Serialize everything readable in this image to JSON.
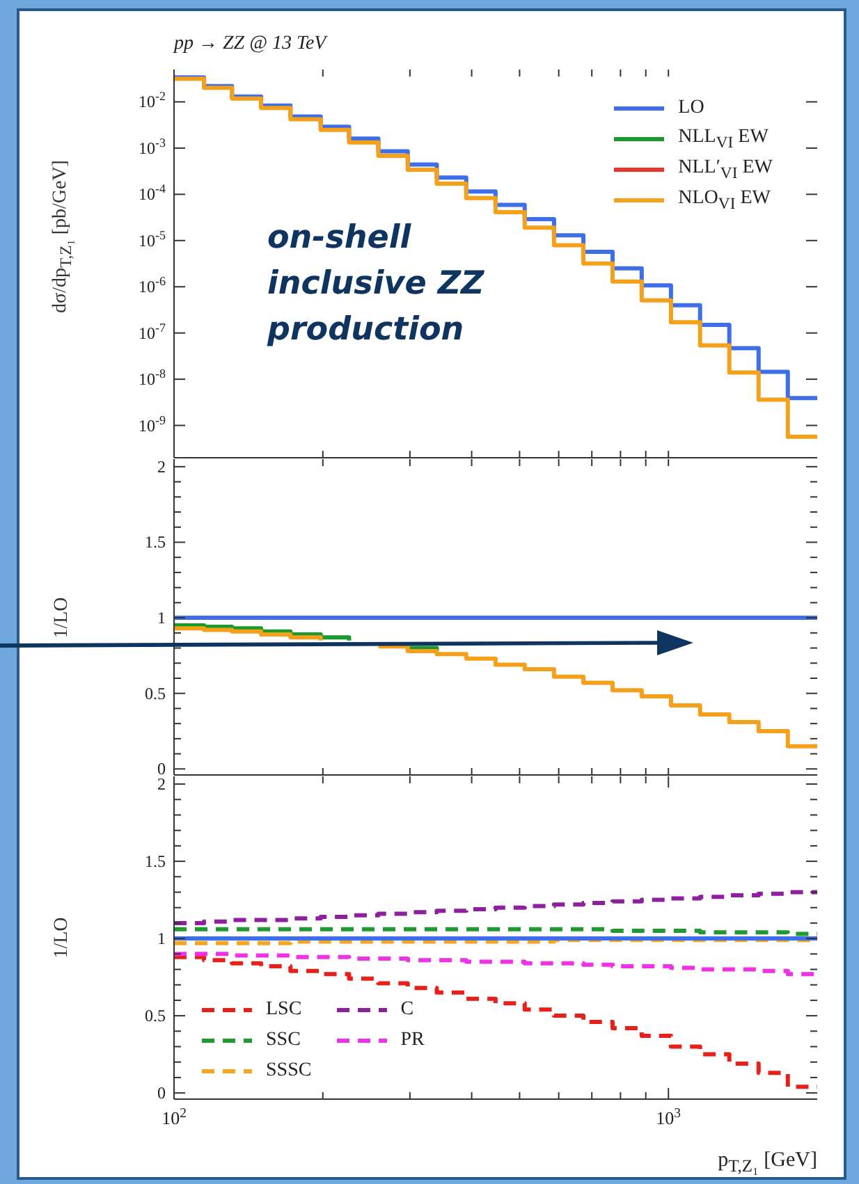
{
  "chart_data": [
    {
      "type": "step",
      "title": "pp → ZZ @ 13 TeV",
      "ylabel": "dσ/dp$_{T,Z₁}$ [pb/GeV]",
      "annotations": [
        "on-shell inclusive ZZ production"
      ],
      "x": [
        100,
        115,
        131,
        150,
        172,
        198,
        226,
        259,
        297,
        340,
        390,
        447,
        512,
        587,
        673,
        771,
        883,
        1012,
        1159,
        1328,
        1522,
        1744,
        2000
      ],
      "xlim": [
        100,
        2000
      ],
      "xticks": [
        {
          "value": 100,
          "label": null
        },
        {
          "value": 200,
          "label": null
        },
        {
          "value": 300,
          "label": null
        },
        {
          "value": 400,
          "label": null
        },
        {
          "value": 500,
          "label": null
        },
        {
          "value": 600,
          "label": null
        },
        {
          "value": 700,
          "label": null
        },
        {
          "value": 800,
          "label": null
        },
        {
          "value": 900,
          "label": null
        },
        {
          "value": 1000,
          "label": null
        }
      ],
      "log": "xy",
      "ylim": [
        2e-10,
        0.05
      ],
      "yticks": [
        {
          "value": 1e-09,
          "label": "10$^{-9}$"
        },
        {
          "value": 1e-08,
          "label": "10$^{-8}$"
        },
        {
          "value": 1e-07,
          "label": "10$^{-7}$"
        },
        {
          "value": 1e-06,
          "label": "10$^{-6}$"
        },
        {
          "value": 1e-05,
          "label": "10$^{-5}$"
        },
        {
          "value": 0.0001,
          "label": "10$^{-4}$"
        },
        {
          "value": 0.001,
          "label": "10$^{-3}$"
        },
        {
          "value": 0.01,
          "label": "10$^{-2}$"
        }
      ],
      "tick_labels": "y",
      "legend": "top right",
      "series": [
        {
          "name": "LO",
          "color": "#3f6fe8",
          "values": [
            0.034,
            0.022,
            0.013,
            0.0083,
            0.0048,
            0.0029,
            0.0016,
            0.00085,
            0.00044,
            0.00023,
            0.000115,
            5.9e-05,
            2.9e-05,
            1.3e-05,
            5.7e-06,
            2.5e-06,
            1.07e-06,
            4e-07,
            1.5e-07,
            4.7e-08,
            1.45e-08,
            3.9e-09,
            3.9e-09
          ]
        },
        {
          "name": "NLL$_{VI}$ EW",
          "color": "#1a9a2a",
          "values": [
            null,
            null,
            null,
            null,
            null,
            null,
            null,
            null,
            null,
            null,
            null,
            null,
            null,
            null,
            null,
            null,
            null,
            null,
            null,
            null,
            null,
            null,
            null
          ]
        },
        {
          "name": "NLL′$_{VI}$ EW",
          "color": "#e8362a",
          "values": [
            null,
            null,
            null,
            null,
            null,
            null,
            null,
            null,
            null,
            null,
            null,
            null,
            null,
            null,
            null,
            null,
            null,
            null,
            null,
            null,
            null,
            null,
            null
          ]
        },
        {
          "name": "NLO$_{VI}$ EW",
          "color": "#f5a01a",
          "values": [
            0.0316,
            0.0201,
            0.0118,
            0.00739,
            0.00418,
            0.00247,
            0.00133,
            0.00068,
            0.00034,
            0.00017,
            8.3e-05,
            4.1e-05,
            1.9e-05,
            7.9e-06,
            3.2e-06,
            1.3e-06,
            5.1e-07,
            1.7e-07,
            5.4e-08,
            1.4e-08,
            3.6e-09,
            5.7e-10,
            5.7e-10
          ]
        }
      ]
    },
    {
      "type": "step",
      "ylabel": "1/LO",
      "x": [
        100,
        115,
        131,
        150,
        172,
        198,
        226,
        259,
        297,
        340,
        390,
        447,
        512,
        587,
        673,
        771,
        883,
        1012,
        1159,
        1328,
        1522,
        1744,
        2000
      ],
      "xlim": [
        100,
        2000
      ],
      "log": "x",
      "xticks": [
        {
          "value": 100,
          "label": null
        },
        {
          "value": 200,
          "label": null
        },
        {
          "value": 300,
          "label": null
        },
        {
          "value": 400,
          "label": null
        },
        {
          "value": 500,
          "label": null
        },
        {
          "value": 600,
          "label": null
        },
        {
          "value": 700,
          "label": null
        },
        {
          "value": 800,
          "label": null
        },
        {
          "value": 900,
          "label": null
        },
        {
          "value": 1000,
          "label": null
        }
      ],
      "ylim": [
        -0.04,
        2.05
      ],
      "yticks": [
        0,
        {
          "value": 0.1,
          "label": null
        },
        {
          "value": 0.2,
          "label": null
        },
        {
          "value": 0.3,
          "label": null
        },
        {
          "value": 0.4,
          "label": null
        },
        0.5,
        {
          "value": 0.6,
          "label": null
        },
        {
          "value": 0.7,
          "label": null
        },
        {
          "value": 0.8,
          "label": null
        },
        {
          "value": 0.9,
          "label": null
        },
        1,
        {
          "value": 1.1,
          "label": null
        },
        {
          "value": 1.2,
          "label": null
        },
        {
          "value": 1.3,
          "label": null
        },
        {
          "value": 1.4,
          "label": null
        },
        1.5,
        {
          "value": 1.6,
          "label": null
        },
        {
          "value": 1.7,
          "label": null
        },
        {
          "value": 1.8,
          "label": null
        },
        {
          "value": 1.9,
          "label": null
        },
        2
      ],
      "tick_labels": "y",
      "series": [
        {
          "color": "#3f6fe8",
          "values": [
            1,
            1,
            1,
            1,
            1,
            1,
            1,
            1,
            1,
            1,
            1,
            1,
            1,
            1,
            1,
            1,
            1,
            1,
            1,
            1,
            1,
            1,
            1
          ]
        },
        {
          "color": "#1a9a2a",
          "values": [
            0.95,
            0.94,
            0.93,
            0.91,
            0.89,
            0.87,
            0.85,
            null,
            0.8,
            0.78,
            null,
            null,
            null,
            null,
            null,
            null,
            null,
            null,
            null,
            null,
            null,
            null,
            null
          ]
        },
        {
          "color": "#e8362a",
          "values": [
            null,
            null,
            null,
            null,
            null,
            null,
            null,
            null,
            null,
            null,
            null,
            null,
            null,
            null,
            null,
            null,
            null,
            null,
            null,
            null,
            null,
            null,
            null
          ]
        },
        {
          "color": "#f5a01a",
          "values": [
            0.93,
            0.92,
            0.91,
            0.89,
            0.87,
            0.85,
            null,
            0.81,
            0.78,
            0.76,
            0.73,
            0.69,
            0.66,
            0.61,
            0.57,
            0.52,
            0.48,
            0.42,
            0.36,
            0.31,
            0.25,
            0.15,
            0.15
          ]
        }
      ]
    },
    {
      "type": "step",
      "ylabel": "1/LO",
      "xlabel": "p$_{T,Z₁}$ [GeV]",
      "x": [
        100,
        115,
        131,
        150,
        172,
        198,
        226,
        259,
        297,
        340,
        390,
        447,
        512,
        587,
        673,
        771,
        883,
        1012,
        1159,
        1328,
        1522,
        1744,
        2000
      ],
      "xlim": [
        100,
        2000
      ],
      "log": "x",
      "xticks": [
        {
          "value": 100,
          "label": "10$^{2}$"
        },
        {
          "value": 200,
          "label": null
        },
        {
          "value": 300,
          "label": null
        },
        {
          "value": 400,
          "label": null
        },
        {
          "value": 500,
          "label": null
        },
        {
          "value": 600,
          "label": null
        },
        {
          "value": 700,
          "label": null
        },
        {
          "value": 800,
          "label": null
        },
        {
          "value": 900,
          "label": null
        },
        {
          "value": 1000,
          "label": "10$^{3}$"
        }
      ],
      "ylim": [
        -0.04,
        2.05
      ],
      "yticks": [
        0,
        {
          "value": 0.1,
          "label": null
        },
        {
          "value": 0.2,
          "label": null
        },
        {
          "value": 0.3,
          "label": null
        },
        {
          "value": 0.4,
          "label": null
        },
        0.5,
        {
          "value": 0.6,
          "label": null
        },
        {
          "value": 0.7,
          "label": null
        },
        {
          "value": 0.8,
          "label": null
        },
        {
          "value": 0.9,
          "label": null
        },
        1,
        {
          "value": 1.1,
          "label": null
        },
        {
          "value": 1.2,
          "label": null
        },
        {
          "value": 1.3,
          "label": null
        },
        {
          "value": 1.4,
          "label": null
        },
        1.5,
        {
          "value": 1.6,
          "label": null
        },
        {
          "value": 1.7,
          "label": null
        },
        {
          "value": 1.8,
          "label": null
        },
        {
          "value": 1.9,
          "label": null
        },
        2
      ],
      "legend": "bottom left",
      "line_style": "dashed",
      "series": [
        {
          "name": "LSC",
          "color": "#e8201a",
          "values": [
            0.88,
            0.86,
            0.84,
            0.82,
            0.79,
            0.77,
            0.74,
            0.71,
            0.68,
            0.65,
            0.61,
            0.58,
            0.54,
            0.5,
            0.46,
            0.42,
            0.37,
            0.3,
            0.25,
            0.19,
            0.13,
            0.04,
            0.04
          ]
        },
        {
          "name": "SSC",
          "color": "#1f9a30",
          "values": [
            1.06,
            1.06,
            1.06,
            1.06,
            1.06,
            1.06,
            1.06,
            1.06,
            1.06,
            1.06,
            1.06,
            1.06,
            1.06,
            1.06,
            1.06,
            1.05,
            1.05,
            1.05,
            1.04,
            1.04,
            1.04,
            1.03,
            1.03
          ]
        },
        {
          "name": "SSSC",
          "color": "#f5a623",
          "values": [
            0.97,
            0.97,
            0.97,
            0.97,
            0.98,
            0.98,
            0.98,
            0.98,
            0.98,
            0.98,
            0.98,
            0.98,
            0.98,
            0.99,
            0.99,
            0.99,
            0.99,
            0.99,
            0.99,
            0.99,
            0.99,
            0.99,
            0.99
          ]
        },
        {
          "name": "C",
          "color": "#8e1f9e",
          "values": [
            1.1,
            1.11,
            1.12,
            1.12,
            1.13,
            1.14,
            1.15,
            1.16,
            1.17,
            1.18,
            1.19,
            1.2,
            1.21,
            1.22,
            1.23,
            1.24,
            1.25,
            1.26,
            1.27,
            1.28,
            1.29,
            1.3,
            1.3
          ]
        },
        {
          "name": "PR",
          "color": "#f032e6",
          "values": [
            0.9,
            0.9,
            0.89,
            0.89,
            0.88,
            0.88,
            0.87,
            0.87,
            0.86,
            0.86,
            0.85,
            0.85,
            0.84,
            0.84,
            0.83,
            0.82,
            0.82,
            0.81,
            0.8,
            0.8,
            0.79,
            0.77,
            0.77
          ]
        },
        {
          "color": "#3f6fe8",
          "line_style": "solid",
          "values": [
            1,
            1,
            1,
            1,
            1,
            1,
            1,
            1,
            1,
            1,
            1,
            1,
            1,
            1,
            1,
            1,
            1,
            1,
            1,
            1,
            1,
            1,
            1
          ]
        }
      ]
    }
  ]
}
